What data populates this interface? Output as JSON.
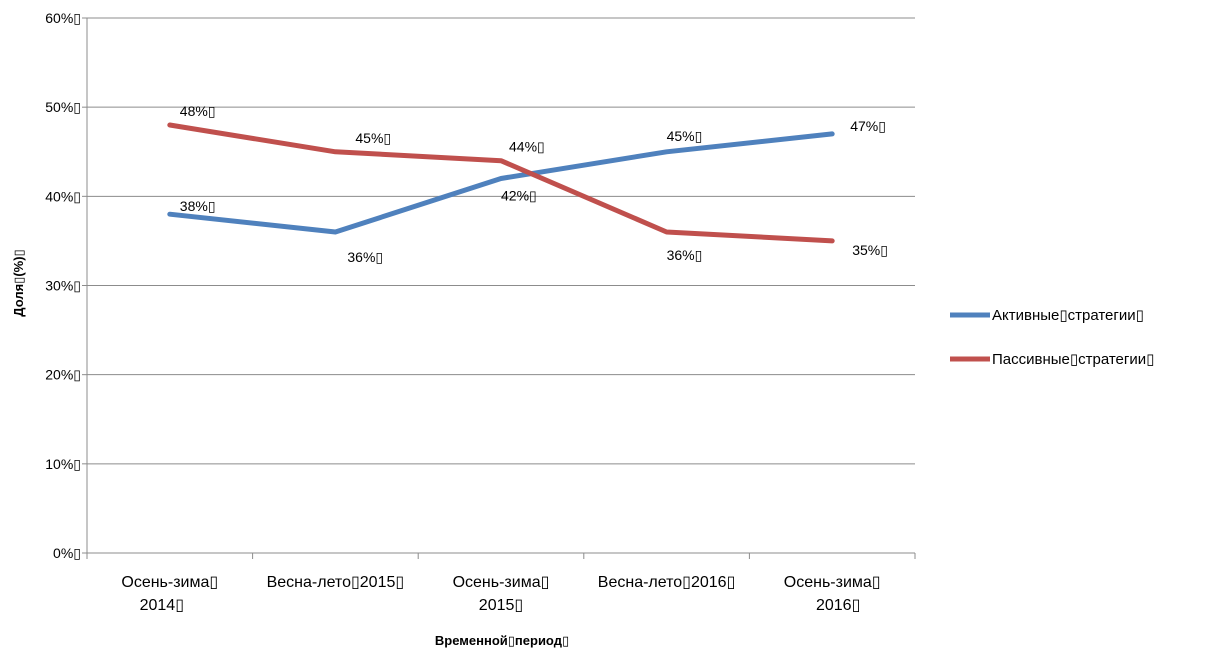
{
  "chart_data": {
    "type": "line",
    "title": "",
    "xlabel": "Временной▯период▯",
    "ylabel": "Доля▯(%)▯",
    "categories": [
      [
        "Осень-зима▯",
        "2014▯"
      ],
      [
        "Весна-лето▯2015▯"
      ],
      [
        "Осень-зима▯",
        "2015▯"
      ],
      [
        "Весна-лето▯2016▯"
      ],
      [
        "Осень-зима▯",
        "2016▯"
      ]
    ],
    "y_ticks": [
      "0%▯",
      "10%▯",
      "20%▯",
      "30%▯",
      "40%▯",
      "50%▯",
      "60%▯"
    ],
    "ylim": [
      0,
      60
    ],
    "grid": true,
    "legend_position": "right",
    "series": [
      {
        "name": "Активные▯стратегии▯",
        "color": "#4F81BD",
        "values": [
          38,
          36,
          42,
          45,
          47
        ],
        "labels": [
          "38%▯",
          "36%▯",
          "42%▯",
          "45%▯",
          "47%▯"
        ]
      },
      {
        "name": "Пассивные▯стратегии▯",
        "color": "#C0504D",
        "values": [
          48,
          45,
          44,
          36,
          35
        ],
        "labels": [
          "48%▯",
          "45%▯",
          "44%▯",
          "36%▯",
          "35%▯"
        ]
      }
    ]
  }
}
